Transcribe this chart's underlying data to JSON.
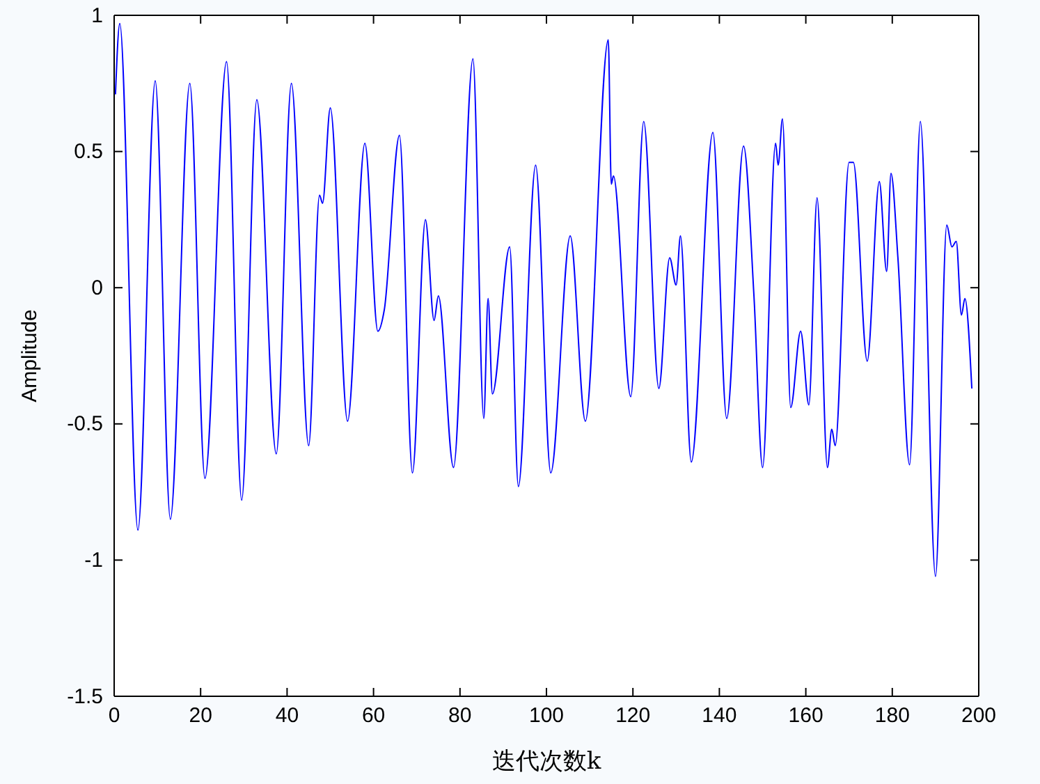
{
  "chart_data": {
    "type": "line",
    "xlabel": "迭代次数k",
    "ylabel": "Amplitude",
    "xlim": [
      0,
      200
    ],
    "ylim": [
      -1.5,
      1
    ],
    "xticks": [
      0,
      20,
      40,
      60,
      80,
      100,
      120,
      140,
      160,
      180,
      200
    ],
    "yticks": [
      -1.5,
      -1,
      -0.5,
      0,
      0.5,
      1
    ],
    "grid": false,
    "marker": "none",
    "line_style": "solid",
    "series": [
      {
        "color": "#0000ff",
        "x": [
          0.3,
          1.3,
          5.5,
          9.5,
          13,
          17.5,
          21,
          26,
          29.5,
          33,
          37.5,
          41,
          45,
          47.5,
          48.2,
          50,
          54,
          58,
          61,
          62.5,
          66,
          69,
          72,
          74,
          75,
          78.5,
          83,
          85.5,
          86.5,
          87.5,
          91.5,
          93.5,
          97.5,
          101,
          105.5,
          109,
          114.3,
          115,
          115.5,
          119.5,
          122.5,
          126,
          128.5,
          130,
          131,
          133.5,
          138.5,
          141.7,
          145.6,
          148,
          150,
          153,
          153.6,
          154.6,
          156.5,
          158.8,
          160.7,
          162.6,
          165,
          166,
          166.8,
          170,
          171,
          174.2,
          177,
          178.7,
          179.7,
          181.3,
          184,
          186.5,
          190,
          192.6,
          193.8,
          194.8,
          196,
          196.8,
          198.4
        ],
        "values": [
          0.71,
          0.97,
          -0.89,
          0.76,
          -0.85,
          0.75,
          -0.7,
          0.83,
          -0.78,
          0.69,
          -0.61,
          0.75,
          -0.58,
          0.34,
          0.31,
          0.66,
          -0.49,
          0.53,
          -0.16,
          -0.08,
          0.56,
          -0.68,
          0.25,
          -0.12,
          -0.03,
          -0.66,
          0.84,
          -0.48,
          -0.04,
          -0.39,
          0.15,
          -0.73,
          0.45,
          -0.68,
          0.19,
          -0.49,
          0.91,
          0.38,
          0.41,
          -0.4,
          0.61,
          -0.37,
          0.11,
          0.01,
          0.19,
          -0.64,
          0.57,
          -0.48,
          0.52,
          -0.03,
          -0.66,
          0.53,
          0.45,
          0.62,
          -0.44,
          -0.16,
          -0.43,
          0.33,
          -0.66,
          -0.52,
          -0.58,
          0.46,
          0.46,
          -0.27,
          0.39,
          0.06,
          0.42,
          0.11,
          -0.65,
          0.61,
          -1.06,
          0.23,
          0.15,
          0.17,
          -0.1,
          -0.04,
          -0.37
        ]
      }
    ]
  }
}
